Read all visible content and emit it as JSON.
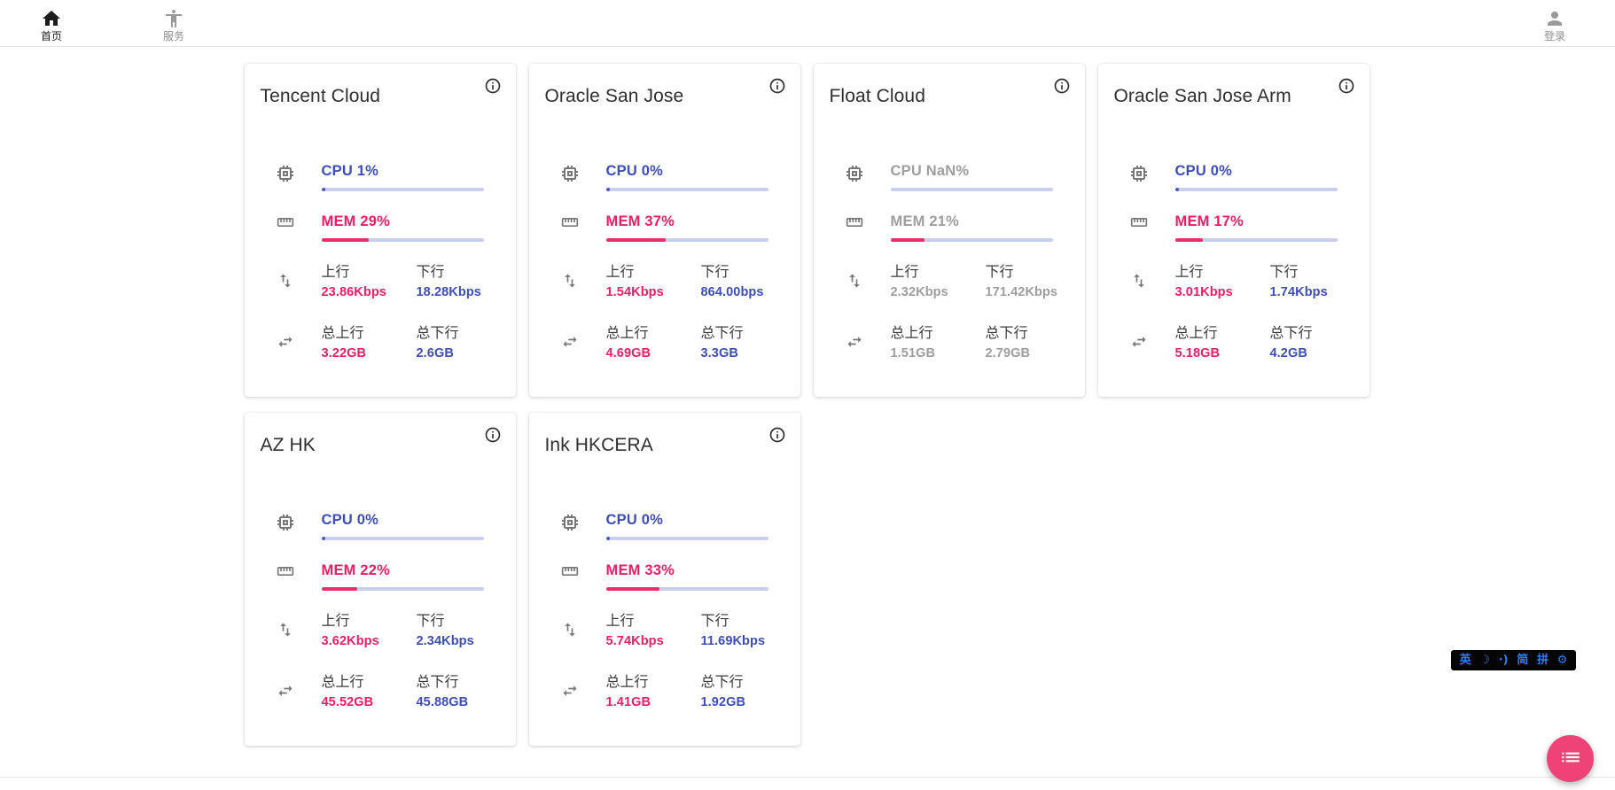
{
  "header": {
    "home": "首页",
    "services": "服务",
    "login": "登录"
  },
  "labels": {
    "up": "上行",
    "down": "下行",
    "total_up": "总上行",
    "total_down": "总下行"
  },
  "cards": [
    {
      "title": "Tencent Cloud",
      "cpu_text": "CPU 1%",
      "cpu_pct": 1,
      "mem_text": "MEM 29%",
      "mem_pct": 29,
      "up": "23.86Kbps",
      "down": "18.28Kbps",
      "total_up": "3.22GB",
      "total_down": "2.6GB",
      "muted": false
    },
    {
      "title": "Oracle San Jose",
      "cpu_text": "CPU 0%",
      "cpu_pct": 0,
      "mem_text": "MEM 37%",
      "mem_pct": 37,
      "up": "1.54Kbps",
      "down": "864.00bps",
      "total_up": "4.69GB",
      "total_down": "3.3GB",
      "muted": false
    },
    {
      "title": "Float Cloud",
      "cpu_text": "CPU NaN%",
      "cpu_pct": null,
      "mem_text": "MEM 21%",
      "mem_pct": 21,
      "up": "2.32Kbps",
      "down": "171.42Kbps",
      "total_up": "1.51GB",
      "total_down": "2.79GB",
      "muted": true
    },
    {
      "title": "Oracle San Jose Arm",
      "cpu_text": "CPU 0%",
      "cpu_pct": 0,
      "mem_text": "MEM 17%",
      "mem_pct": 17,
      "up": "3.01Kbps",
      "down": "1.74Kbps",
      "total_up": "5.18GB",
      "total_down": "4.2GB",
      "muted": false
    },
    {
      "title": "AZ HK",
      "cpu_text": "CPU 0%",
      "cpu_pct": 0,
      "mem_text": "MEM 22%",
      "mem_pct": 22,
      "up": "3.62Kbps",
      "down": "2.34Kbps",
      "total_up": "45.52GB",
      "total_down": "45.88GB",
      "muted": false
    },
    {
      "title": "Ink HKCERA",
      "cpu_text": "CPU 0%",
      "cpu_pct": 0,
      "mem_text": "MEM 33%",
      "mem_pct": 33,
      "up": "5.74Kbps",
      "down": "11.69Kbps",
      "total_up": "1.41GB",
      "total_down": "1.92GB",
      "muted": false
    }
  ],
  "ime_bar": {
    "items": [
      {
        "name": "ime-lang-english",
        "glyph": "英"
      },
      {
        "name": "ime-moon",
        "glyph": "☽"
      },
      {
        "name": "ime-sound",
        "glyph": "·)"
      },
      {
        "name": "ime-simplified",
        "glyph": "简"
      },
      {
        "name": "ime-pinyin",
        "glyph": "拼"
      },
      {
        "name": "ime-settings",
        "glyph": "⚙"
      }
    ]
  },
  "colors": {
    "accent_blue": "#3d4eb8",
    "accent_pink": "#ed1e63",
    "bar_track": "#c9cdee",
    "muted_gray": "#9e9e9e",
    "fab_pink": "#ef4377",
    "ime_blue": "#2e7cf6"
  }
}
